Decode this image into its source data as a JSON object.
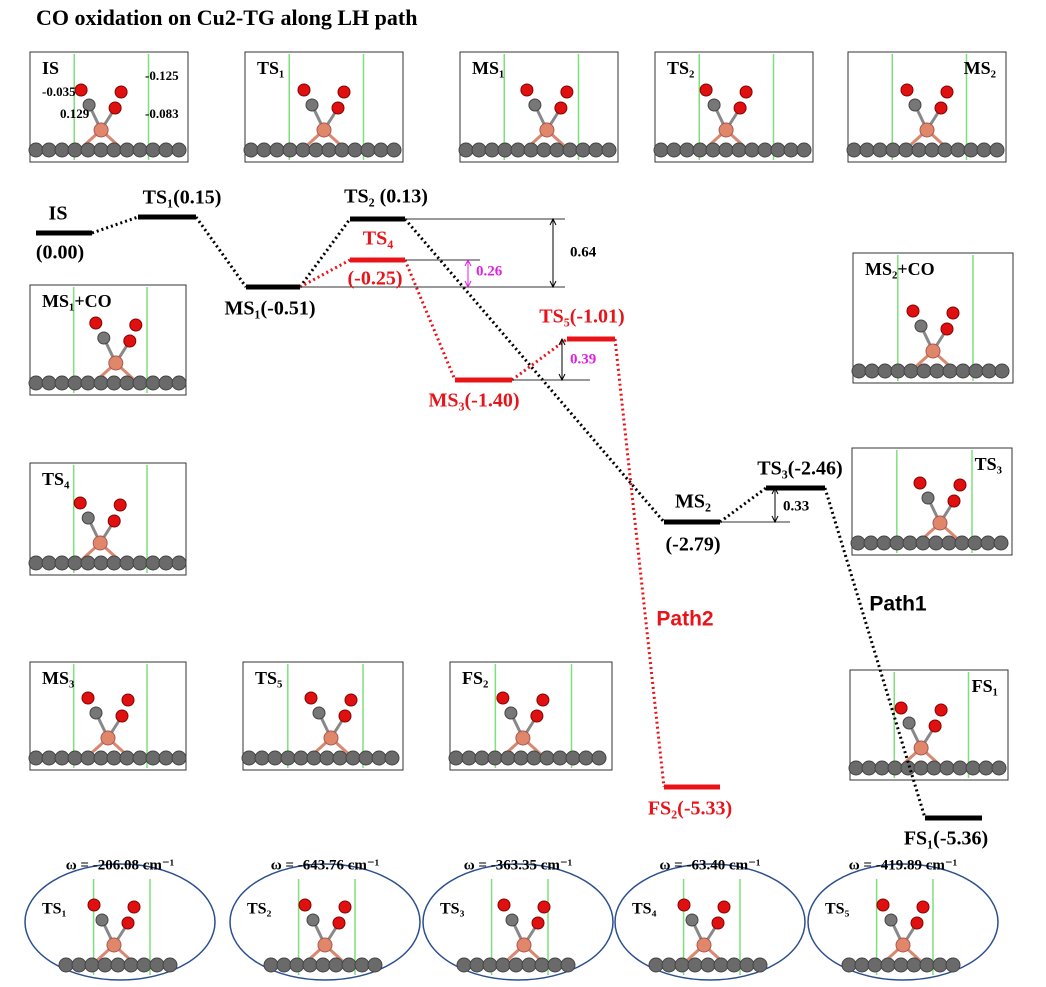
{
  "title": "CO oxidation  on Cu2-TG along LH path",
  "panels": [
    {
      "label": "IS",
      "charges": [
        "-0.035",
        "0.129",
        "-0.125",
        "-0.083"
      ]
    },
    {
      "label": "TS₁"
    },
    {
      "label": "MS₁"
    },
    {
      "label": "TS₂"
    },
    {
      "label": "MS₂"
    },
    {
      "label": "MS₁+CO"
    },
    {
      "label": "TS₄"
    },
    {
      "label": "MS₂+CO"
    },
    {
      "label": "TS₃"
    },
    {
      "label": "FS₁"
    },
    {
      "label": "MS₃"
    },
    {
      "label": "TS₅"
    },
    {
      "label": "FS₂"
    }
  ],
  "levels": [
    {
      "texts": [
        "IS",
        "(0.00)"
      ]
    },
    {
      "texts": [
        "TS₁(0.15)"
      ]
    },
    {
      "texts": [
        "MS₁(-0.51)"
      ]
    },
    {
      "texts": [
        "TS₂ (0.13)"
      ]
    },
    {
      "texts": [
        "TS₄",
        "(-0.25)"
      ]
    },
    {
      "texts": [
        "MS₃(-1.40)"
      ]
    },
    {
      "texts": [
        "TS₅(-1.01)"
      ]
    },
    {
      "texts": [
        "MS₂",
        "(-2.79)"
      ]
    },
    {
      "texts": [
        "TS₃(-2.46)"
      ]
    },
    {
      "texts": [
        "FS₂(-5.33)"
      ]
    },
    {
      "texts": [
        "FS₁(-5.36)"
      ]
    }
  ],
  "barriers": [
    "0.64",
    "0.26",
    "0.39",
    "0.33"
  ],
  "paths": [
    "Path2",
    "Path1"
  ],
  "frequencies": [
    {
      "omega": "ω = -206.08 cm⁻¹",
      "label": "TS₁"
    },
    {
      "omega": "ω = -643.76 cm⁻¹",
      "label": "TS₂"
    },
    {
      "omega": "ω = -363.35 cm⁻¹",
      "label": "TS₃"
    },
    {
      "omega": "ω = -63.40 cm⁻¹",
      "label": "TS₄"
    },
    {
      "omega": "ω = -419.89 cm⁻¹",
      "label": "TS₅"
    }
  ]
}
